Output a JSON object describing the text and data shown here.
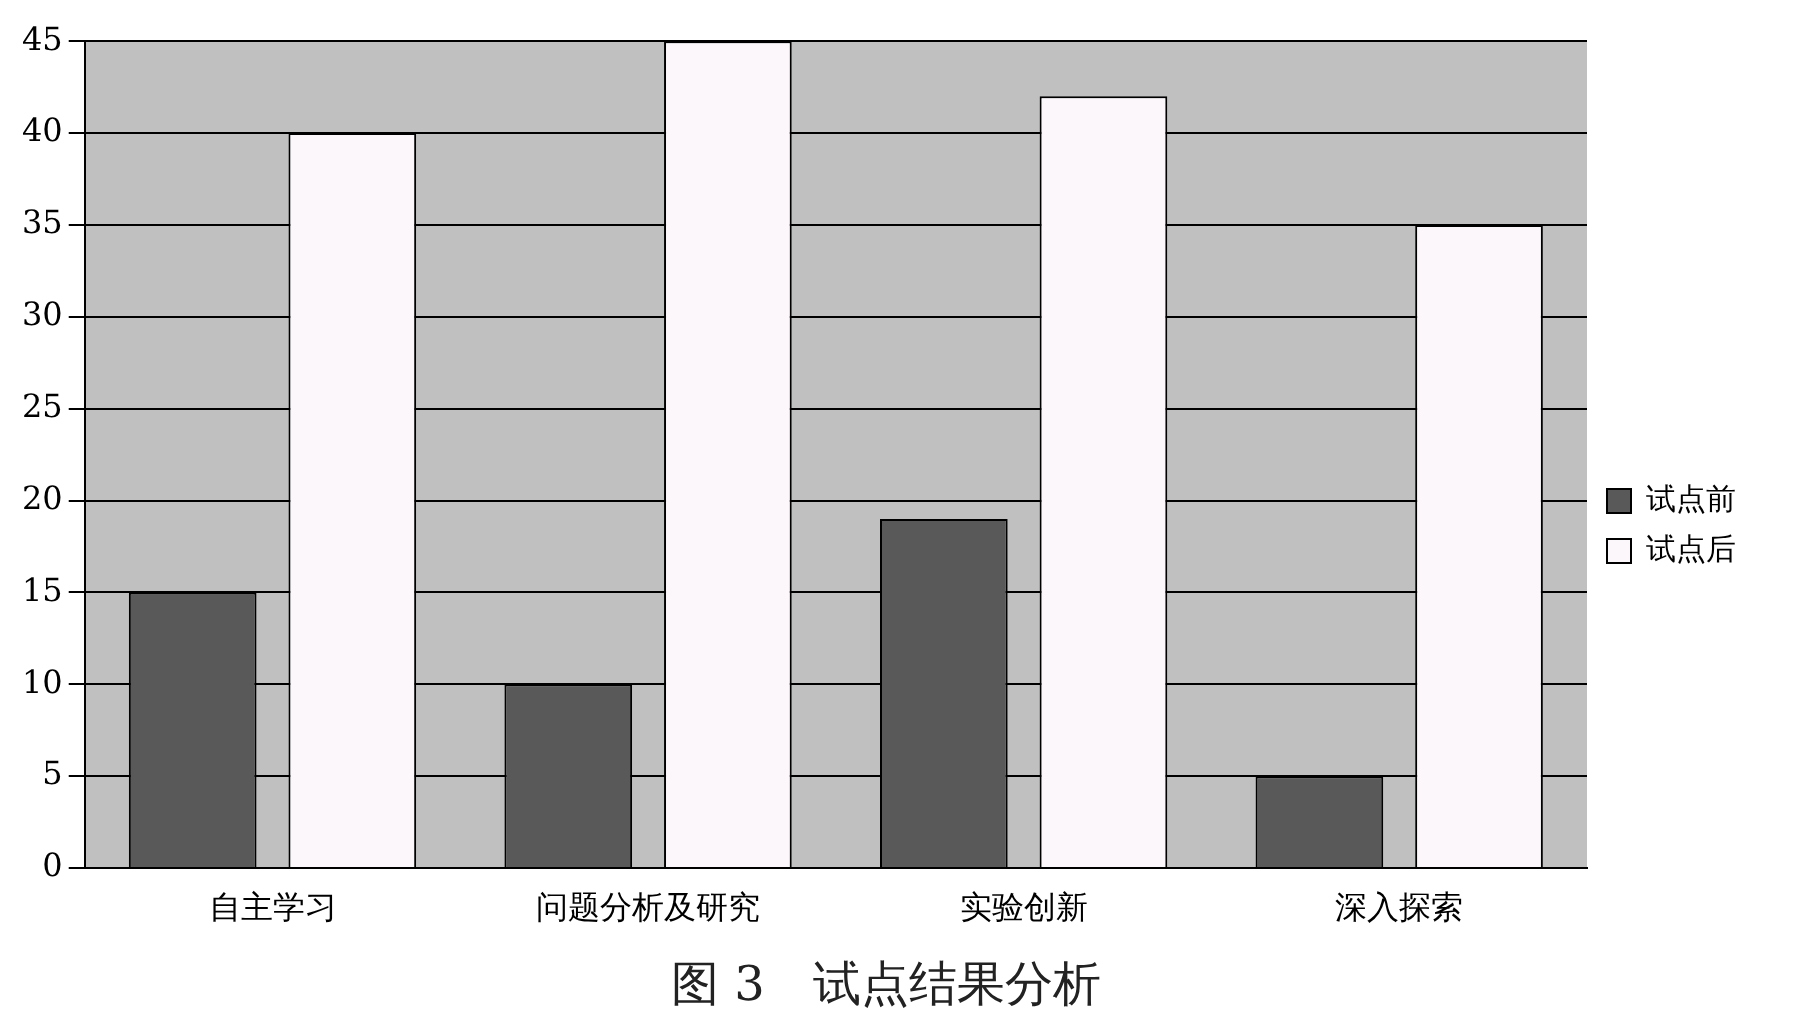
{
  "chart_data": {
    "type": "bar",
    "title": "图 3　试点结果分析",
    "categories": [
      "自主学习",
      "问题分析及研究",
      "实验创新",
      "深入探索"
    ],
    "series": [
      {
        "name": "试点前",
        "color": "#595959",
        "values": [
          15,
          10,
          19,
          5
        ]
      },
      {
        "name": "试点后",
        "color": "#fbf7fb",
        "values": [
          40,
          45,
          42,
          35
        ]
      }
    ],
    "ylim": [
      0,
      45
    ],
    "yticks": [
      0,
      5,
      10,
      15,
      20,
      25,
      30,
      35,
      40,
      45
    ],
    "grid": "y",
    "legend": "right"
  }
}
